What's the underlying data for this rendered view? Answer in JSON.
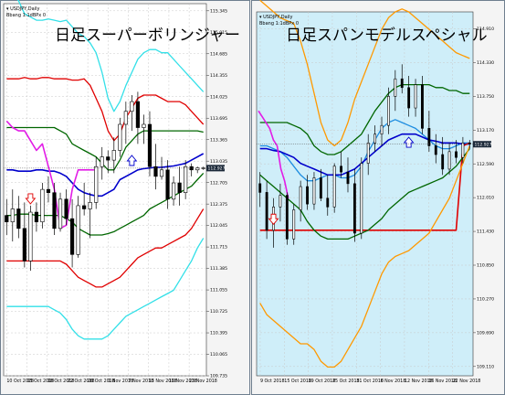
{
  "colors": {
    "left_bg": "#ffffff",
    "right_bg": "#cfeef9",
    "frame": "#6f7f8f",
    "grid": "#c9c9c9",
    "mid": "#0000cc",
    "sigma1": "#006600",
    "sigma2": "#e00000",
    "sigma3": "#33e0e8",
    "sigma3_right": "#ff9900",
    "lagging": "#e21ce6",
    "tenkan": "#1e8de0",
    "kijun": "#e00000",
    "candle_up": "#ffffff",
    "candle_down": "#000000",
    "pricebox_bg": "#1b2838"
  },
  "chart_data": [
    {
      "type": "candlestick",
      "title": "日足スーパーボリンジャー",
      "symbol_line": "USDJPY,Daily",
      "indicator_line": "Bbang 1:1dBPx 0",
      "yticks": [
        "115.345",
        "115.015",
        "114.685",
        "114.355",
        "114.025",
        "113.695",
        "113.365",
        "113.035",
        "112.705",
        "112.375",
        "112.045",
        "111.715",
        "111.385",
        "111.055",
        "110.725",
        "110.395",
        "110.065",
        "109.735"
      ],
      "ylim": [
        109.735,
        115.455
      ],
      "current_price": "112.927",
      "xticks": [
        "10 Oct 2018",
        "15 Oct 2018",
        "18 Oct 2018",
        "22 Oct 2018",
        "26 Oct 2018",
        "1 Nov 2018",
        "7 Nov 2018",
        "13 Nov 2018",
        "16 Nov 2018",
        "23 Nov 2018"
      ],
      "n_bars": 34,
      "candles": [
        [
          112.2,
          112.45,
          111.9,
          112.1
        ],
        [
          112.1,
          112.6,
          111.8,
          112.3
        ],
        [
          112.3,
          112.5,
          111.85,
          112.0
        ],
        [
          112.0,
          112.4,
          111.4,
          111.5
        ],
        [
          111.5,
          112.35,
          111.35,
          112.25
        ],
        [
          112.25,
          112.4,
          111.95,
          112.1
        ],
        [
          112.1,
          112.7,
          112.0,
          112.6
        ],
        [
          112.6,
          112.8,
          112.4,
          112.55
        ],
        [
          112.55,
          112.7,
          111.9,
          112.0
        ],
        [
          112.0,
          112.55,
          111.95,
          112.45
        ],
        [
          112.45,
          112.6,
          112.05,
          112.15
        ],
        [
          112.15,
          112.45,
          111.4,
          111.6
        ],
        [
          111.6,
          112.5,
          111.55,
          112.35
        ],
        [
          112.35,
          112.7,
          112.2,
          112.3
        ],
        [
          112.3,
          112.55,
          111.85,
          112.4
        ],
        [
          112.4,
          113.1,
          112.3,
          112.95
        ],
        [
          112.95,
          113.25,
          112.75,
          113.1
        ],
        [
          113.1,
          113.2,
          112.85,
          113.05
        ],
        [
          113.05,
          113.4,
          112.85,
          113.2
        ],
        [
          113.2,
          113.7,
          113.1,
          113.6
        ],
        [
          113.6,
          113.95,
          113.3,
          113.8
        ],
        [
          113.8,
          114.05,
          113.5,
          113.95
        ],
        [
          113.95,
          114.1,
          113.3,
          113.55
        ],
        [
          113.55,
          113.75,
          113.3,
          113.6
        ],
        [
          113.6,
          113.8,
          112.8,
          112.95
        ],
        [
          112.95,
          113.3,
          112.6,
          112.8
        ],
        [
          112.8,
          113.1,
          112.75,
          112.9
        ],
        [
          112.9,
          113.05,
          112.3,
          112.45
        ],
        [
          112.45,
          112.8,
          112.35,
          112.7
        ],
        [
          112.7,
          112.95,
          112.35,
          112.55
        ],
        [
          112.55,
          113.05,
          112.45,
          112.95
        ],
        [
          112.95,
          113.0,
          112.8,
          112.9
        ],
        [
          112.9,
          112.95,
          112.85,
          112.93
        ],
        [
          112.93,
          112.95,
          112.9,
          112.93
        ]
      ],
      "series": [
        {
          "key": "sigma3",
          "values": [
            115.6,
            115.6,
            115.5,
            115.3,
            115.25,
            115.2,
            115.2,
            115.22,
            115.2,
            115.18,
            115.2,
            115.1,
            115.0,
            114.95,
            114.85,
            114.7,
            114.4,
            114.0,
            113.8,
            113.95,
            114.2,
            114.4,
            114.6,
            114.7,
            114.75,
            114.75,
            114.7,
            114.7,
            114.6,
            114.5,
            114.4,
            114.3,
            114.2,
            114.1
          ]
        },
        {
          "key": "sigma2",
          "values": [
            114.3,
            114.3,
            114.3,
            114.32,
            114.3,
            114.3,
            114.32,
            114.32,
            114.3,
            114.3,
            114.3,
            114.28,
            114.28,
            114.3,
            114.2,
            114.0,
            113.8,
            113.5,
            113.35,
            113.45,
            113.7,
            113.85,
            114.0,
            114.05,
            114.05,
            114.05,
            114.0,
            113.95,
            113.95,
            113.95,
            113.9,
            113.8,
            113.7,
            113.6
          ]
        },
        {
          "key": "sigma1",
          "values": [
            113.55,
            113.55,
            113.55,
            113.55,
            113.55,
            113.55,
            113.55,
            113.55,
            113.55,
            113.5,
            113.45,
            113.3,
            113.25,
            113.2,
            113.15,
            113.1,
            113.0,
            112.9,
            112.9,
            113.05,
            113.25,
            113.35,
            113.45,
            113.5,
            113.5,
            113.5,
            113.5,
            113.5,
            113.5,
            113.5,
            113.5,
            113.5,
            113.5,
            113.48
          ]
        },
        {
          "key": "mid",
          "values": [
            112.9,
            112.9,
            112.88,
            112.88,
            112.88,
            112.9,
            112.9,
            112.88,
            112.88,
            112.85,
            112.8,
            112.7,
            112.6,
            112.55,
            112.52,
            112.5,
            112.5,
            112.55,
            112.6,
            112.75,
            112.8,
            112.85,
            112.9,
            112.92,
            112.93,
            112.94,
            112.94,
            112.95,
            112.96,
            112.98,
            113.0,
            113.05,
            113.1,
            113.15
          ]
        },
        {
          "key": "sigma1",
          "values": [
            112.2,
            112.2,
            112.22,
            112.22,
            112.22,
            112.2,
            112.2,
            112.2,
            112.2,
            112.2,
            112.15,
            112.1,
            112.0,
            111.95,
            111.9,
            111.9,
            111.9,
            111.92,
            111.95,
            112.0,
            112.05,
            112.1,
            112.15,
            112.2,
            112.3,
            112.35,
            112.4,
            112.45,
            112.5,
            112.55,
            112.6,
            112.65,
            112.75,
            112.85
          ]
        },
        {
          "key": "sigma2",
          "values": [
            111.5,
            111.5,
            111.5,
            111.5,
            111.5,
            111.5,
            111.5,
            111.5,
            111.5,
            111.5,
            111.45,
            111.35,
            111.25,
            111.2,
            111.15,
            111.1,
            111.1,
            111.15,
            111.2,
            111.25,
            111.35,
            111.45,
            111.55,
            111.6,
            111.65,
            111.7,
            111.7,
            111.75,
            111.8,
            111.85,
            111.9,
            112.0,
            112.15,
            112.3
          ]
        },
        {
          "key": "sigma3",
          "values": [
            110.8,
            110.8,
            110.8,
            110.8,
            110.8,
            110.8,
            110.8,
            110.8,
            110.75,
            110.7,
            110.6,
            110.45,
            110.35,
            110.3,
            110.3,
            110.3,
            110.3,
            110.35,
            110.45,
            110.55,
            110.65,
            110.7,
            110.75,
            110.8,
            110.85,
            110.9,
            110.95,
            111.0,
            111.05,
            111.2,
            111.35,
            111.5,
            111.7,
            111.85
          ]
        },
        {
          "key": "lagging",
          "values": [
            113.65,
            113.55,
            113.5,
            113.5,
            113.35,
            113.2,
            113.3,
            112.95,
            112.6,
            112.0,
            112.05,
            112.6,
            112.9,
            112.9,
            112.9,
            112.9
          ]
        }
      ],
      "markers": [
        {
          "type": "arrow-down",
          "color": "#e00000",
          "bar": 4,
          "price": 112.42
        },
        {
          "type": "arrow-up",
          "color": "#0000cc",
          "bar": 21,
          "price": 113.08
        }
      ]
    },
    {
      "type": "candlestick",
      "title": "日足スパンモデルスペシャル",
      "symbol_line": "USDJPY,Daily",
      "indicator_line": "Bbang 1:1dBPx 0",
      "yticks": [
        "114.910",
        "114.330",
        "113.750",
        "113.170",
        "112.590",
        "112.010",
        "111.430",
        "110.850",
        "110.270",
        "109.690",
        "109.110"
      ],
      "ylim": [
        108.95,
        115.2
      ],
      "current_price": "112.927",
      "xticks": [
        "9 Oct 2018",
        "15 Oct 2018",
        "19 Oct 2018",
        "25 Oct 2018",
        "31 Oct 2018",
        "6 Nov 2018",
        "12 Nov 2018",
        "16 Nov 2018",
        "22 Nov 2018"
      ],
      "n_bars": 58,
      "candles": [
        [
          112.25,
          112.45,
          111.85,
          112.1
        ],
        [
          112.1,
          112.3,
          111.3,
          111.45
        ],
        [
          111.45,
          112.0,
          111.15,
          111.85
        ],
        [
          111.85,
          112.25,
          111.6,
          112.05
        ],
        [
          112.05,
          112.1,
          111.2,
          111.3
        ],
        [
          111.3,
          111.9,
          111.2,
          111.8
        ],
        [
          111.8,
          112.3,
          111.6,
          112.2
        ],
        [
          112.2,
          112.4,
          111.8,
          111.9
        ],
        [
          111.9,
          112.45,
          111.8,
          112.35
        ],
        [
          112.35,
          112.5,
          111.95,
          112.0
        ],
        [
          112.0,
          112.4,
          111.7,
          111.85
        ],
        [
          111.85,
          112.6,
          111.75,
          112.55
        ],
        [
          112.55,
          112.8,
          112.35,
          112.45
        ],
        [
          112.45,
          112.7,
          112.1,
          112.25
        ],
        [
          112.25,
          112.5,
          111.25,
          111.4
        ],
        [
          111.4,
          112.7,
          111.3,
          112.6
        ],
        [
          112.6,
          113.1,
          112.4,
          112.95
        ],
        [
          112.95,
          113.25,
          112.8,
          113.1
        ],
        [
          113.1,
          113.4,
          112.9,
          113.25
        ],
        [
          113.25,
          113.9,
          113.1,
          113.75
        ],
        [
          113.75,
          114.2,
          113.5,
          114.05
        ],
        [
          114.05,
          114.3,
          113.8,
          113.9
        ],
        [
          113.9,
          114.1,
          113.4,
          113.55
        ],
        [
          113.55,
          114.05,
          113.4,
          113.95
        ],
        [
          113.95,
          114.1,
          113.1,
          113.2
        ],
        [
          113.2,
          113.5,
          112.8,
          112.9
        ],
        [
          112.9,
          113.1,
          112.6,
          112.75
        ],
        [
          112.75,
          113.05,
          112.4,
          112.5
        ],
        [
          112.5,
          112.95,
          112.4,
          112.8
        ],
        [
          112.8,
          113.0,
          112.6,
          112.7
        ],
        [
          112.7,
          113.05,
          112.6,
          112.95
        ],
        [
          112.95,
          113.0,
          112.85,
          112.93
        ]
      ],
      "series": [
        {
          "key": "sigma3_right",
          "values": [
            115.4,
            115.3,
            115.2,
            115.1,
            115.05,
            115.0,
            114.7,
            114.3,
            113.8,
            113.3,
            113.0,
            112.9,
            113.0,
            113.3,
            113.7,
            114.0,
            114.3,
            114.6,
            114.9,
            115.1,
            115.2,
            115.25,
            115.2,
            115.1,
            115.0,
            114.9,
            114.8,
            114.7,
            114.6,
            114.5,
            114.45,
            114.4
          ]
        },
        {
          "key": "sigma1",
          "values": [
            113.3,
            113.3,
            113.3,
            113.3,
            113.3,
            113.25,
            113.2,
            113.1,
            112.9,
            112.8,
            112.75,
            112.75,
            112.8,
            112.9,
            113.0,
            113.1,
            113.3,
            113.5,
            113.65,
            113.8,
            113.9,
            113.95,
            113.95,
            113.95,
            113.95,
            113.95,
            113.9,
            113.9,
            113.85,
            113.85,
            113.8,
            113.8
          ]
        },
        {
          "key": "tenkan",
          "values": [
            112.9,
            112.9,
            112.85,
            112.8,
            112.7,
            112.55,
            112.4,
            112.3,
            112.3,
            112.35,
            112.4,
            112.4,
            112.35,
            112.35,
            112.4,
            112.55,
            112.8,
            113.0,
            113.2,
            113.3,
            113.35,
            113.3,
            113.25,
            113.2,
            113.1,
            113.0,
            112.9,
            112.85,
            112.85,
            112.9,
            112.95,
            112.95
          ]
        },
        {
          "key": "mid",
          "values": [
            112.85,
            112.85,
            112.82,
            112.8,
            112.75,
            112.7,
            112.6,
            112.55,
            112.5,
            112.45,
            112.4,
            112.4,
            112.4,
            112.45,
            112.5,
            112.6,
            112.7,
            112.8,
            112.9,
            113.0,
            113.05,
            113.1,
            113.1,
            113.1,
            113.05,
            113.0,
            112.98,
            112.95,
            112.95,
            112.95,
            112.93,
            112.93
          ]
        },
        {
          "key": "kijun",
          "values": [
            111.45,
            111.45,
            111.45,
            111.45,
            111.45,
            111.45,
            111.45,
            111.45,
            111.45,
            111.45,
            111.45,
            111.45,
            111.45,
            111.45,
            111.45,
            111.45,
            111.45,
            111.45,
            111.45,
            111.45,
            111.45,
            111.45,
            111.45,
            111.45,
            111.45,
            111.45,
            111.45,
            111.45,
            111.45,
            111.45,
            112.9,
            112.95
          ]
        },
        {
          "key": "sigma1",
          "values": [
            112.4,
            112.3,
            112.2,
            112.1,
            112.0,
            111.9,
            111.8,
            111.6,
            111.45,
            111.35,
            111.3,
            111.3,
            111.3,
            111.3,
            111.35,
            111.4,
            111.45,
            111.55,
            111.65,
            111.8,
            111.9,
            112.0,
            112.1,
            112.15,
            112.2,
            112.25,
            112.3,
            112.35,
            112.45,
            112.55,
            112.7,
            112.85
          ]
        },
        {
          "key": "sigma3_right",
          "values": [
            110.2,
            110.0,
            109.9,
            109.8,
            109.7,
            109.6,
            109.5,
            109.5,
            109.4,
            109.2,
            109.1,
            109.1,
            109.2,
            109.4,
            109.6,
            109.8,
            110.1,
            110.4,
            110.7,
            110.9,
            111.0,
            111.05,
            111.1,
            111.2,
            111.3,
            111.4,
            111.6,
            111.8,
            112.0,
            112.3,
            112.6,
            112.9
          ]
        },
        {
          "key": "lagging",
          "values": [
            113.5,
            113.4,
            113.3,
            113.2,
            113.0,
            112.9,
            112.5,
            112.3,
            112.0
          ]
        }
      ],
      "markers": [
        {
          "type": "arrow-down",
          "color": "#e00000",
          "bar": 2,
          "price": 111.6
        },
        {
          "type": "arrow-up",
          "color": "#0000cc",
          "bar": 22,
          "price": 113.0
        }
      ]
    }
  ]
}
